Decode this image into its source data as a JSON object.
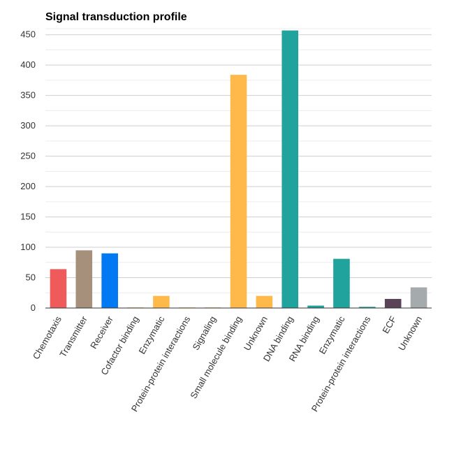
{
  "chart_data": {
    "type": "bar",
    "title": "Signal transduction profile",
    "xlabel": "",
    "ylabel": "",
    "ylim": [
      0,
      460
    ],
    "yticks": [
      0,
      50,
      100,
      150,
      200,
      250,
      300,
      350,
      400,
      450
    ],
    "grid": true,
    "legend": "none",
    "categories": [
      "Chemotaxis",
      "Transmitter",
      "Receiver",
      "Cofactor binding",
      "Enzymatic",
      "Protein-protein interactions",
      "Signaling",
      "Small molecule binding",
      "Unknown",
      "DNA binding",
      "RNA binding",
      "Enzymatic",
      "Protein-protein interactions",
      "ECF",
      "Unknown"
    ],
    "values": [
      64,
      95,
      90,
      1,
      20,
      1,
      1,
      384,
      20,
      457,
      4,
      81,
      2,
      15,
      34
    ],
    "colors": [
      "#ef5b5b",
      "#a68f7b",
      "#0079f2",
      "#ffb84a",
      "#ffb84a",
      "#ffb84a",
      "#ffb84a",
      "#ffb84a",
      "#ffb84a",
      "#21a39d",
      "#21a39d",
      "#21a39d",
      "#21a39d",
      "#5a4257",
      "#a5aaad"
    ]
  }
}
